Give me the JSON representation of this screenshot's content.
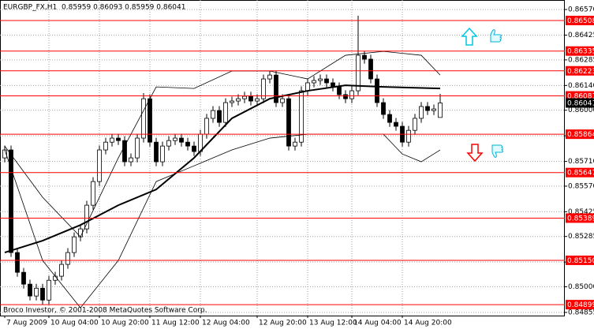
{
  "chart_data": {
    "type": "candlestick",
    "title": "EURGBP_FX,H1  0.85959 0.86093 0.85959 0.86041",
    "watermark": "Broco Investor, © 2001-2008 MetaQuotes Software Corp.",
    "xlim": [
      -0.75,
      88.75
    ],
    "xticks": [
      {
        "value": 0,
        "label": "7 Aug 2009"
      },
      {
        "value": 7,
        "label": "10 Aug 04:00"
      },
      {
        "value": 15,
        "label": "10 Aug 20:00"
      },
      {
        "value": 23,
        "label": "11 Aug 12:00"
      },
      {
        "value": 31,
        "label": "12 Aug 04:00"
      },
      {
        "value": 40,
        "label": "12 Aug 20:00"
      },
      {
        "value": 48,
        "label": "13 Aug 12:00"
      },
      {
        "value": 55,
        "label": "14 Aug 04:00"
      },
      {
        "value": 63,
        "label": "14 Aug 20:00"
      }
    ],
    "ylim": [
      0.84837,
      0.86624
    ],
    "yticks": [
      {
        "value": 0.8657,
        "label": "0.86570"
      },
      0.86425,
      0.86285,
      {
        "value": 0.8614,
        "label": "0.86140"
      },
      {
        "value": 0.86,
        "label": "0.86000"
      },
      0.85855,
      {
        "value": 0.8571,
        "label": "0.85710"
      },
      {
        "value": 0.8557,
        "label": "0.85570"
      },
      0.85425,
      0.85285,
      {
        "value": 0.8514,
        "label": "0.85140"
      },
      {
        "value": 0.85,
        "label": "0.85000"
      },
      0.84855
    ],
    "grid": true,
    "up_color": "#ffffff",
    "down_color": "#000000",
    "wick_color": "#000000",
    "open": [
      0.8573,
      0.85775,
      0.85194,
      0.85082,
      0.85015,
      0.84948,
      0.84992,
      0.84925,
      0.85037,
      0.8506,
      0.85127,
      0.85194,
      0.85283,
      0.85328,
      0.85462,
      0.85596,
      0.85775,
      0.85819,
      0.85842,
      0.85828,
      0.85708,
      0.8573,
      0.85842,
      0.86065,
      0.85819,
      0.85708,
      0.85797,
      0.85828,
      0.85842,
      0.85819,
      0.85797,
      0.85766,
      0.85864,
      0.85954,
      0.85998,
      0.85931,
      0.86043,
      0.86052,
      0.86065,
      0.86079,
      0.86052,
      0.86065,
      0.86177,
      0.86199,
      0.86043,
      0.86065,
      0.85797,
      0.85819,
      0.8611,
      0.86155,
      0.86168,
      0.86177,
      0.86155,
      0.86132,
      0.86088,
      0.86065,
      0.8611,
      0.86311,
      0.86289,
      0.86177,
      0.86043,
      0.85976,
      0.85931,
      0.85909,
      0.85819,
      0.85886,
      0.85954,
      0.86021,
      0.85998,
      0.85959
    ],
    "high": [
      0.858,
      0.858,
      0.85219,
      0.85107,
      0.8504,
      0.85017,
      0.85017,
      0.85062,
      0.85085,
      0.85152,
      0.85219,
      0.85308,
      0.85353,
      0.85487,
      0.85621,
      0.858,
      0.85844,
      0.85867,
      0.85867,
      0.85853,
      0.85755,
      0.85867,
      0.86097,
      0.8609,
      0.85844,
      0.85822,
      0.85853,
      0.85867,
      0.85867,
      0.85844,
      0.85822,
      0.85889,
      0.85979,
      0.86023,
      0.86023,
      0.86068,
      0.86077,
      0.8609,
      0.86104,
      0.86104,
      0.8609,
      0.86202,
      0.86224,
      0.86224,
      0.8609,
      0.8609,
      0.85844,
      0.86135,
      0.8618,
      0.86193,
      0.86202,
      0.86202,
      0.8618,
      0.86157,
      0.86113,
      0.86135,
      0.86535,
      0.86336,
      0.86314,
      0.86202,
      0.86068,
      0.86001,
      0.85956,
      0.85934,
      0.85911,
      0.85979,
      0.86046,
      0.86046,
      0.86032,
      0.86093
    ],
    "low": [
      0.85705,
      0.85169,
      0.85057,
      0.8499,
      0.84923,
      0.84923,
      0.849,
      0.849,
      0.85012,
      0.85035,
      0.85102,
      0.85169,
      0.85258,
      0.85303,
      0.85437,
      0.85571,
      0.8575,
      0.85794,
      0.85803,
      0.85683,
      0.85683,
      0.85705,
      0.85817,
      0.85794,
      0.85683,
      0.85683,
      0.85772,
      0.85803,
      0.85794,
      0.85772,
      0.85741,
      0.85741,
      0.85839,
      0.85929,
      0.85906,
      0.85906,
      0.86018,
      0.86027,
      0.8604,
      0.86027,
      0.86027,
      0.8604,
      0.86152,
      0.86018,
      0.86018,
      0.85772,
      0.85772,
      0.85794,
      0.86085,
      0.8613,
      0.86143,
      0.8613,
      0.86107,
      0.86063,
      0.8604,
      0.8604,
      0.86085,
      0.86264,
      0.86152,
      0.86018,
      0.85951,
      0.85906,
      0.85884,
      0.85794,
      0.85794,
      0.85861,
      0.85929,
      0.85973,
      0.85973,
      0.85959
    ],
    "close": [
      0.85775,
      0.85194,
      0.85082,
      0.85015,
      0.84948,
      0.84992,
      0.84925,
      0.85037,
      0.8506,
      0.85127,
      0.85194,
      0.85283,
      0.85328,
      0.85462,
      0.85596,
      0.85775,
      0.85819,
      0.85842,
      0.85828,
      0.85708,
      0.8573,
      0.85842,
      0.86065,
      0.85819,
      0.85708,
      0.85797,
      0.85828,
      0.85842,
      0.85819,
      0.85797,
      0.85766,
      0.85864,
      0.85954,
      0.85998,
      0.85931,
      0.86043,
      0.86052,
      0.86065,
      0.86079,
      0.86052,
      0.86065,
      0.86177,
      0.86199,
      0.86043,
      0.86065,
      0.85797,
      0.85819,
      0.8611,
      0.86155,
      0.86168,
      0.86177,
      0.86155,
      0.86132,
      0.86088,
      0.86065,
      0.8611,
      0.86311,
      0.86289,
      0.86177,
      0.86043,
      0.85976,
      0.85931,
      0.85909,
      0.85819,
      0.85886,
      0.85954,
      0.86021,
      0.85998,
      0.86007,
      0.86041
    ],
    "indicators": [
      {
        "x": [
          0,
          6,
          12,
          18,
          24,
          30,
          36,
          42,
          48,
          54,
          60,
          69
        ],
        "values": [
          0.85194,
          0.85261,
          0.8535,
          0.85462,
          0.85551,
          0.8573,
          0.85954,
          0.86065,
          0.8611,
          0.86141,
          0.86132,
          0.86123
        ],
        "color": "#000000",
        "line_width": 2
      },
      {
        "x": [
          0,
          6,
          12,
          18,
          24,
          30,
          36,
          42,
          48,
          54,
          60,
          66,
          69
        ],
        "values": [
          0.85797,
          0.85507,
          0.85283,
          0.8573,
          0.86132,
          0.86123,
          0.86222,
          0.86222,
          0.86177,
          0.86311,
          0.86333,
          0.86311,
          0.86199
        ],
        "color": "#000000",
        "line_width": 0.8
      },
      {
        "x": [
          0,
          6,
          12,
          18,
          24,
          30,
          36,
          42,
          48,
          54,
          60,
          63,
          66,
          69
        ],
        "values": [
          0.85775,
          0.85149,
          0.84881,
          0.85149,
          0.85596,
          0.85685,
          0.85775,
          0.85842,
          0.85864,
          0.85864,
          0.85864,
          0.85752,
          0.85708,
          0.85775
        ],
        "color": "#000000",
        "line_width": 0.8
      }
    ],
    "levels": {
      "values": [
        0.86508,
        0.86335,
        0.86223,
        0.86081,
        0.85864,
        0.85647,
        0.85389,
        {
          "value": 0.8515,
          "label": "0.85150"
        },
        0.84899
      ],
      "color": "#ff0000"
    },
    "last_price": 0.86041
  }
}
